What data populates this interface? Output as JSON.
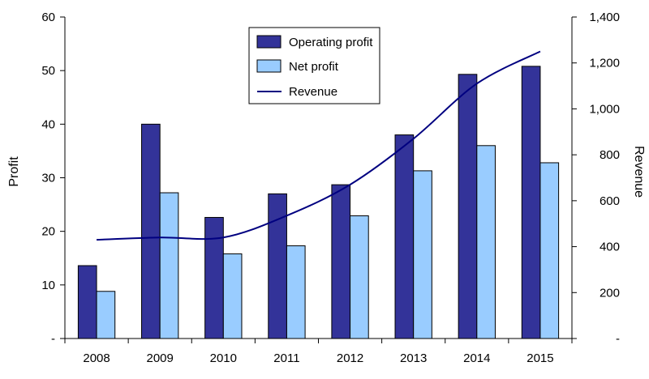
{
  "chart_data": {
    "type": "bar",
    "categories": [
      "2008",
      "2009",
      "2010",
      "2011",
      "2012",
      "2013",
      "2014",
      "2015"
    ],
    "series": [
      {
        "name": "Operating profit",
        "type": "bar",
        "axis": "left",
        "color": "#333399",
        "values": [
          13.6,
          40.0,
          22.6,
          27.0,
          28.7,
          38.0,
          49.3,
          50.8
        ]
      },
      {
        "name": "Net profit",
        "type": "bar",
        "axis": "left",
        "color": "#99CCFF",
        "values": [
          8.8,
          27.2,
          15.8,
          17.3,
          22.9,
          31.3,
          36.0,
          32.8
        ]
      },
      {
        "name": "Revenue",
        "type": "line",
        "axis": "right",
        "color": "#000080",
        "values": [
          430,
          440,
          440,
          535,
          670,
          870,
          1110,
          1250
        ]
      }
    ],
    "ylabel": "Profit",
    "y2label": "Revenue",
    "ylim": [
      0,
      60
    ],
    "y2lim": [
      0,
      1400
    ],
    "y_ticks": [
      {
        "value": 0,
        "label": "-"
      },
      {
        "value": 10,
        "label": "10"
      },
      {
        "value": 20,
        "label": "20"
      },
      {
        "value": 30,
        "label": "30"
      },
      {
        "value": 40,
        "label": "40"
      },
      {
        "value": 50,
        "label": "50"
      },
      {
        "value": 60,
        "label": "60"
      }
    ],
    "y2_ticks": [
      {
        "value": 0,
        "label": "-"
      },
      {
        "value": 200,
        "label": "200"
      },
      {
        "value": 400,
        "label": "400"
      },
      {
        "value": 600,
        "label": "600"
      },
      {
        "value": 800,
        "label": "800"
      },
      {
        "value": 1000,
        "label": "1,000"
      },
      {
        "value": 1200,
        "label": "1,200"
      },
      {
        "value": 1400,
        "label": "1,400"
      }
    ],
    "grid": false,
    "legend_position": "top-center"
  }
}
